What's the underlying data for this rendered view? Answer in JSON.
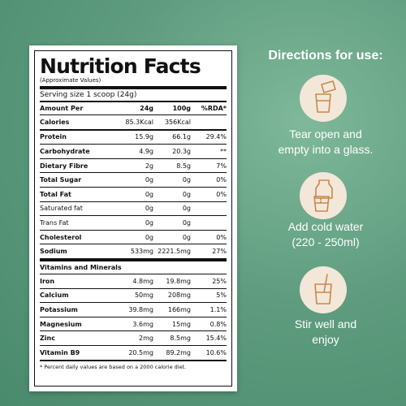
{
  "nutrition": {
    "title": "Nutrition Facts",
    "subtitle": "(Approximate Values)",
    "serving": "Serving size 1 scoop (24g)",
    "header": {
      "label": "Amount Per",
      "c1": "24g",
      "c2": "100g",
      "c3": "%RDA*"
    },
    "calories": {
      "label": "Calories",
      "c1": "85.3Kcal",
      "c2": "356Kcal",
      "c3": ""
    },
    "rows": [
      {
        "label": "Protein",
        "c1": "15.9g",
        "c2": "66.1g",
        "c3": "29.4%"
      },
      {
        "label": "Carbohydrate",
        "c1": "4.9g",
        "c2": "20.3g",
        "c3": "**"
      },
      {
        "label": "Dietary Fibre",
        "c1": "2g",
        "c2": "8.5g",
        "c3": "7%"
      },
      {
        "label": "Total Sugar",
        "c1": "0g",
        "c2": "0g",
        "c3": "0%"
      },
      {
        "label": "Total Fat",
        "c1": "0g",
        "c2": "0g",
        "c3": "0%"
      },
      {
        "label": "Saturated fat",
        "c1": "0g",
        "c2": "0g",
        "c3": ""
      },
      {
        "label": "Trans Fat",
        "c1": "0g",
        "c2": "0g",
        "c3": ""
      },
      {
        "label": "Cholesterol",
        "c1": "0g",
        "c2": "0g",
        "c3": "0%"
      },
      {
        "label": "Sodium",
        "c1": "533mg",
        "c2": "2221.5mg",
        "c3": "27%"
      }
    ],
    "section": "Vitamins and Minerals",
    "minerals": [
      {
        "label": "Iron",
        "c1": "4.8mg",
        "c2": "19.8mg",
        "c3": "25%"
      },
      {
        "label": "Calcium",
        "c1": "50mg",
        "c2": "208mg",
        "c3": "5%"
      },
      {
        "label": "Potassium",
        "c1": "39.8mg",
        "c2": "166mg",
        "c3": "1.1%"
      },
      {
        "label": "Magnesium",
        "c1": "3.6mg",
        "c2": "15mg",
        "c3": "0.8%"
      },
      {
        "label": "Zinc",
        "c1": "2mg",
        "c2": "8.5mg",
        "c3": "15.4%"
      },
      {
        "label": "Vitamin B9",
        "c1": "20.5mg",
        "c2": "89.2mg",
        "c3": "10.6%"
      }
    ],
    "footnote": "* Percent daily values are based on a 2000 calorie diet."
  },
  "directions": {
    "title": "Directions for use:",
    "steps": [
      {
        "icon": "tear-packet-glass-icon",
        "line1": "Tear open and",
        "line2": "empty into a glass."
      },
      {
        "icon": "pour-water-glass-icon",
        "line1": "Add cold water",
        "line2": "(220 - 250ml)"
      },
      {
        "icon": "stir-glass-icon",
        "line1": "Stir well and",
        "line2": "enjoy"
      }
    ]
  },
  "colors": {
    "background": "#5f9c7f",
    "icon_circle": "#f3e7d9",
    "icon_stroke": "#c9884a"
  }
}
